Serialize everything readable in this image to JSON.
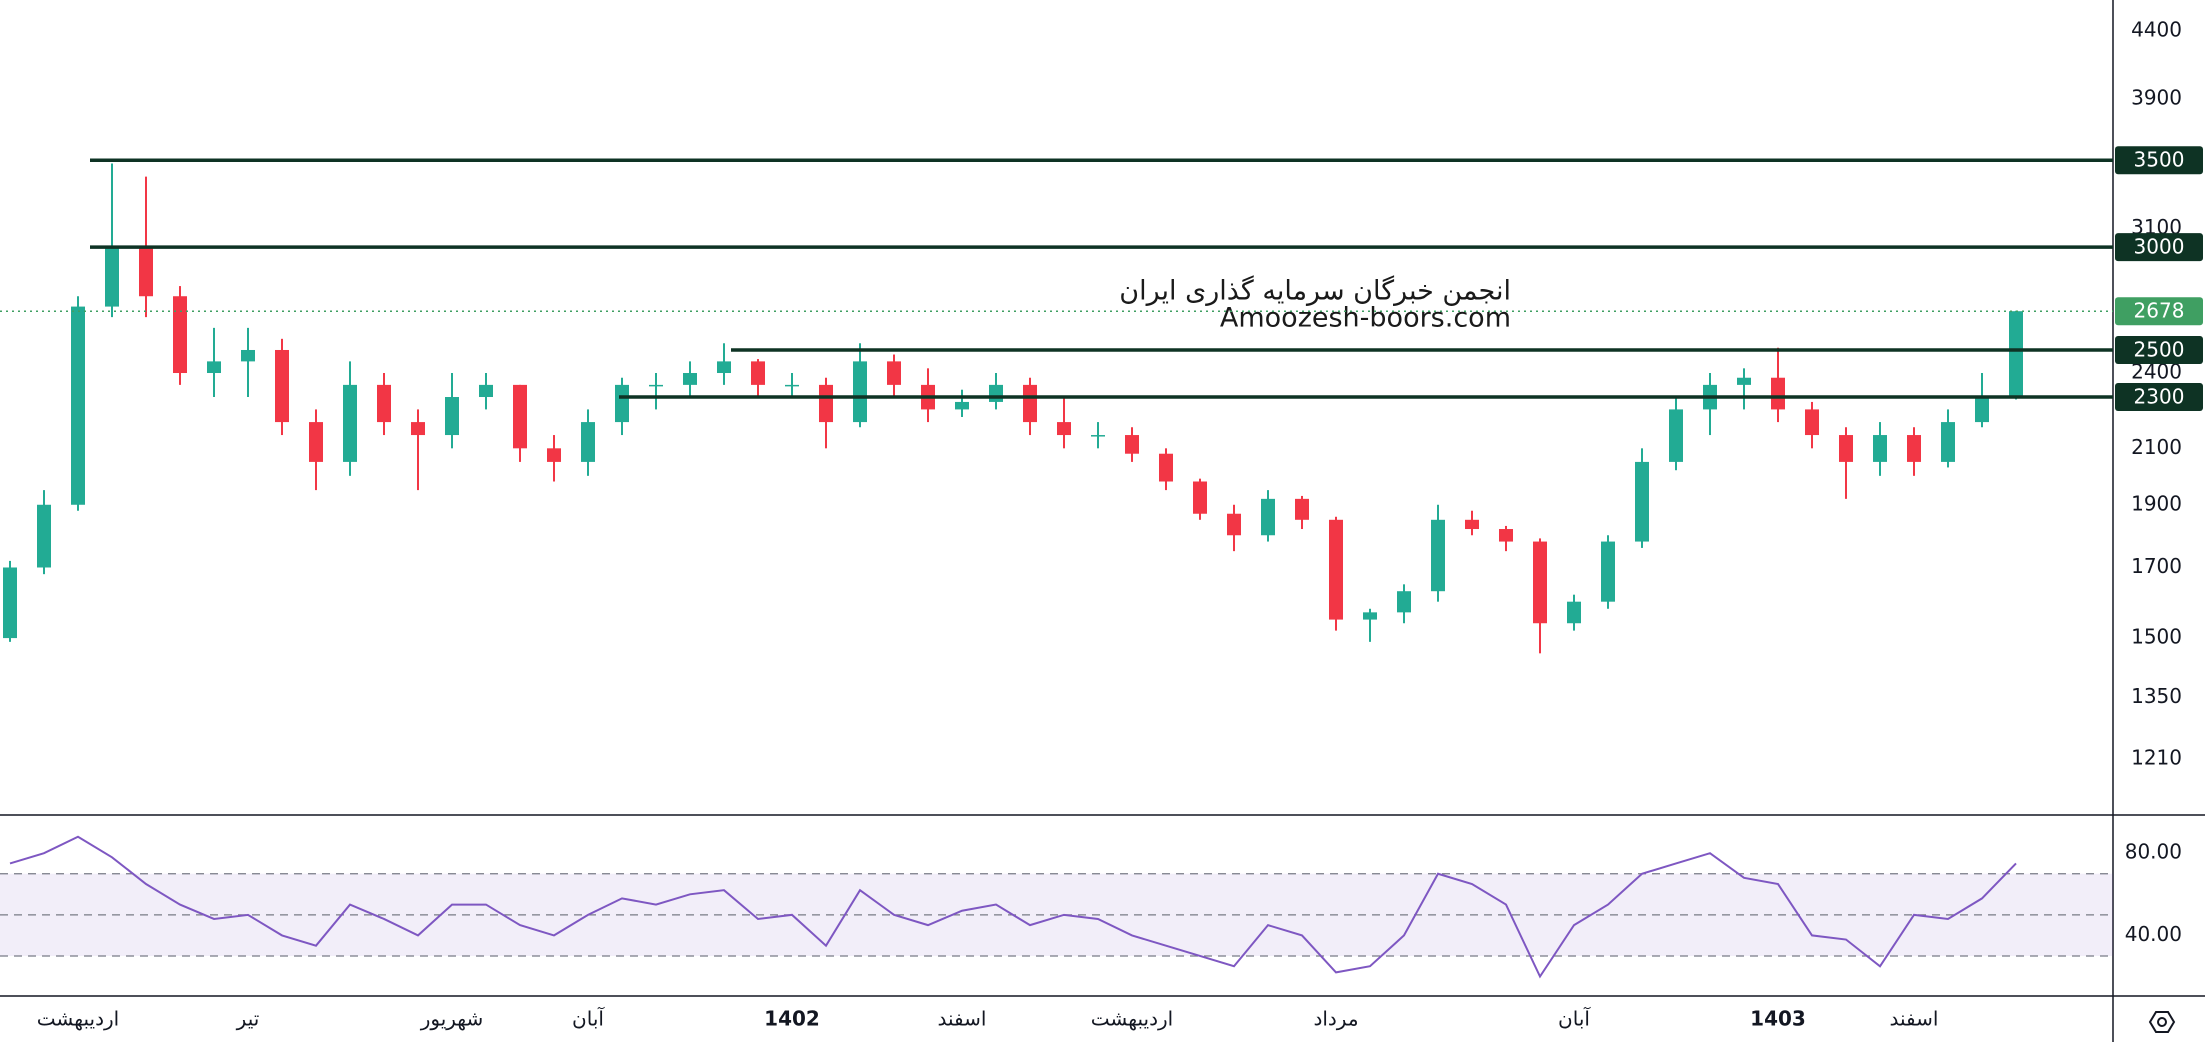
{
  "chart_data": [
    {
      "type": "candlestick",
      "annotations": [
        "انجمن خبرگان سرمایه گذاری ایران",
        "Amoozesh-boors.com"
      ],
      "categories": [
        null,
        null,
        "اردیبهشت",
        null,
        null,
        null,
        null,
        "تیر",
        null,
        null,
        null,
        null,
        null,
        "شهریور",
        null,
        null,
        null,
        "آبان",
        null,
        null,
        null,
        null,
        null,
        "1402",
        null,
        null,
        null,
        null,
        "اسفند",
        null,
        null,
        null,
        null,
        "اردیبهشت",
        null,
        null,
        null,
        null,
        null,
        "مرداد",
        null,
        null,
        null,
        null,
        null,
        null,
        "آبان",
        null,
        null,
        null,
        null,
        null,
        "1403",
        null,
        null,
        null,
        "اسفند",
        null,
        null,
        null
      ],
      "open": [
        1500,
        1700,
        1900,
        2700,
        3000,
        2750,
        2400,
        2450,
        2500,
        2200,
        2050,
        2350,
        2200,
        2150,
        2300,
        2350,
        2100,
        2050,
        2200,
        2350,
        2350,
        2400,
        2450,
        2350,
        2350,
        2200,
        2450,
        2350,
        2250,
        2280,
        2350,
        2200,
        2150,
        2150,
        2080,
        1980,
        1870,
        1800,
        1920,
        1850,
        1550,
        1570,
        1630,
        1850,
        1820,
        1780,
        1540,
        1600,
        1780,
        2050,
        2250,
        2350,
        2380,
        2250,
        2150,
        2050,
        2150,
        2050,
        2200,
        2300
      ],
      "high": [
        1720,
        1950,
        2750,
        3480,
        3400,
        2800,
        2600,
        2600,
        2550,
        2250,
        2450,
        2400,
        2250,
        2400,
        2400,
        2350,
        2150,
        2250,
        2380,
        2400,
        2450,
        2530,
        2460,
        2400,
        2380,
        2530,
        2480,
        2420,
        2330,
        2400,
        2380,
        2300,
        2200,
        2180,
        2100,
        1990,
        1900,
        1950,
        1930,
        1860,
        1580,
        1650,
        1900,
        1880,
        1830,
        1790,
        1620,
        1800,
        2100,
        2300,
        2400,
        2420,
        2510,
        2280,
        2180,
        2200,
        2180,
        2250,
        2400,
        2680
      ],
      "low": [
        1490,
        1680,
        1880,
        2650,
        2650,
        2350,
        2300,
        2300,
        2150,
        1950,
        2000,
        2150,
        1950,
        2100,
        2250,
        2050,
        1980,
        2000,
        2150,
        2250,
        2300,
        2350,
        2300,
        2300,
        2100,
        2180,
        2300,
        2200,
        2220,
        2250,
        2150,
        2100,
        2100,
        2050,
        1950,
        1850,
        1750,
        1780,
        1820,
        1520,
        1490,
        1540,
        1600,
        1800,
        1750,
        1460,
        1520,
        1580,
        1760,
        2020,
        2150,
        2250,
        2200,
        2100,
        1920,
        2000,
        2000,
        2030,
        2180,
        2290
      ],
      "close": [
        1700,
        1900,
        2700,
        3000,
        2750,
        2400,
        2450,
        2500,
        2200,
        2050,
        2350,
        2200,
        2150,
        2300,
        2350,
        2100,
        2050,
        2200,
        2350,
        2350,
        2400,
        2450,
        2350,
        2350,
        2200,
        2450,
        2350,
        2250,
        2280,
        2350,
        2200,
        2150,
        2150,
        2080,
        1980,
        1870,
        1800,
        1920,
        1850,
        1550,
        1570,
        1630,
        1850,
        1820,
        1780,
        1540,
        1600,
        1780,
        2050,
        2250,
        2350,
        2380,
        2250,
        2150,
        2050,
        2150,
        2050,
        2200,
        2300,
        2678
      ],
      "up_color": "#22ab94",
      "down_color": "#f23645",
      "ylim": [
        1100,
        4650
      ],
      "log_scale": true,
      "yticks": [
        1210,
        1350,
        1500,
        1700,
        1900,
        2100,
        2400,
        3100,
        3900,
        4400
      ],
      "levels": [
        3500,
        3000,
        2500,
        2300
      ],
      "level_color": "#0e3324",
      "last_price": 2678,
      "last_price_color": "#3f9f62"
    },
    {
      "type": "line",
      "values": [
        75,
        80,
        88,
        78,
        65,
        55,
        48,
        50,
        40,
        35,
        55,
        48,
        40,
        55,
        55,
        45,
        40,
        50,
        58,
        55,
        60,
        62,
        48,
        50,
        35,
        62,
        50,
        45,
        52,
        55,
        45,
        50,
        48,
        40,
        35,
        30,
        25,
        45,
        40,
        22,
        25,
        40,
        70,
        65,
        55,
        20,
        45,
        55,
        70,
        75,
        80,
        68,
        65,
        40,
        38,
        25,
        50,
        48,
        58,
        75
      ],
      "color": "#7e57c2",
      "ylim": [
        11.5,
        97.6
      ],
      "yticks": [
        {
          "value": 80,
          "label": "80.00"
        },
        {
          "value": 40,
          "label": "40.00"
        }
      ],
      "reference_lines": [
        70,
        50,
        30
      ]
    }
  ]
}
